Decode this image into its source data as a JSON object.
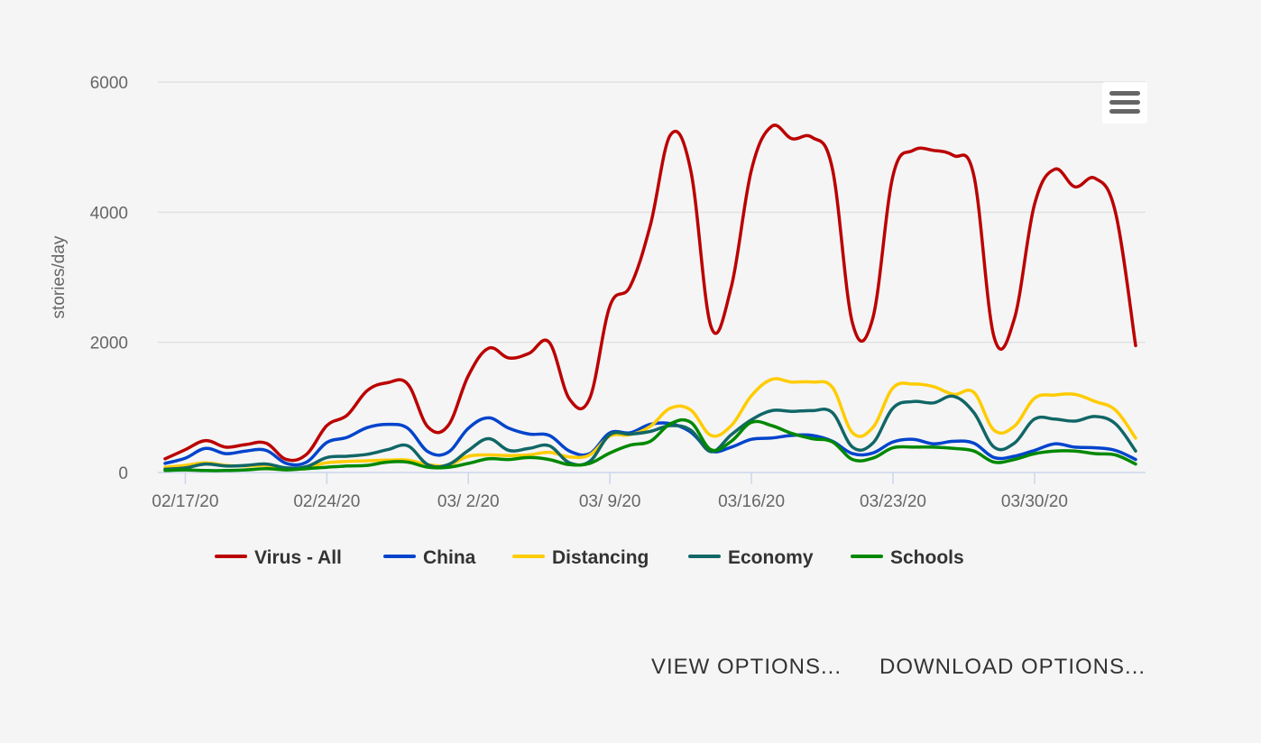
{
  "chart_data": {
    "type": "line",
    "title": "",
    "xlabel": "",
    "ylabel": "stories/day",
    "ylim": [
      0,
      6000
    ],
    "yticks": [
      0,
      2000,
      4000,
      6000
    ],
    "xlim": [
      0,
      48
    ],
    "xticks": [
      {
        "pos": 1,
        "label": "02/17/20"
      },
      {
        "pos": 8,
        "label": "02/24/20"
      },
      {
        "pos": 15,
        "label": "03/ 2/20"
      },
      {
        "pos": 22,
        "label": "03/ 9/20"
      },
      {
        "pos": 29,
        "label": "03/16/20"
      },
      {
        "pos": 36,
        "label": "03/23/20"
      },
      {
        "pos": 43,
        "label": "03/30/20"
      }
    ],
    "x": [
      0,
      1,
      2,
      3,
      4,
      5,
      6,
      7,
      8,
      9,
      10,
      11,
      12,
      13,
      14,
      15,
      16,
      17,
      18,
      19,
      20,
      21,
      22,
      23,
      24,
      25,
      26,
      27,
      28,
      29,
      30,
      31,
      32,
      33,
      34,
      35,
      36,
      37,
      38,
      39,
      40,
      41,
      42,
      43,
      44,
      45,
      46,
      47,
      48
    ],
    "legend_position": "bottom",
    "grid": true,
    "series": [
      {
        "name": "Virus - All",
        "color": "#bb0000",
        "values": [
          210,
          350,
          490,
          390,
          430,
          450,
          200,
          280,
          720,
          880,
          1260,
          1380,
          1360,
          700,
          720,
          1490,
          1910,
          1760,
          1830,
          2000,
          1130,
          1140,
          2560,
          2860,
          3800,
          5190,
          4640,
          2240,
          2850,
          4650,
          5320,
          5130,
          5150,
          4670,
          2290,
          2370,
          4560,
          4950,
          4950,
          4870,
          4560,
          2080,
          2360,
          4120,
          4660,
          4390,
          4520,
          4000,
          1950
        ]
      },
      {
        "name": "China",
        "color": "#0044cc",
        "values": [
          140,
          220,
          370,
          290,
          330,
          340,
          140,
          160,
          460,
          540,
          690,
          740,
          680,
          320,
          310,
          680,
          840,
          680,
          590,
          570,
          330,
          290,
          610,
          610,
          740,
          750,
          620,
          330,
          390,
          510,
          530,
          570,
          570,
          480,
          290,
          300,
          470,
          510,
          440,
          480,
          450,
          230,
          250,
          340,
          440,
          390,
          380,
          340,
          200
        ]
      },
      {
        "name": "Distancing",
        "color": "#ffcc00",
        "values": [
          80,
          110,
          150,
          110,
          100,
          110,
          60,
          80,
          150,
          170,
          180,
          190,
          190,
          120,
          110,
          250,
          270,
          260,
          270,
          310,
          240,
          270,
          560,
          580,
          710,
          990,
          960,
          570,
          720,
          1180,
          1430,
          1390,
          1390,
          1310,
          610,
          690,
          1300,
          1360,
          1320,
          1200,
          1230,
          650,
          710,
          1140,
          1190,
          1200,
          1090,
          960,
          530
        ]
      },
      {
        "name": "Economy",
        "color": "#116666",
        "values": [
          50,
          70,
          130,
          100,
          110,
          130,
          70,
          90,
          230,
          250,
          280,
          350,
          410,
          120,
          120,
          340,
          520,
          340,
          370,
          410,
          150,
          170,
          580,
          590,
          630,
          720,
          650,
          320,
          580,
          810,
          950,
          940,
          950,
          920,
          390,
          450,
          990,
          1090,
          1070,
          1170,
          920,
          390,
          450,
          820,
          820,
          790,
          860,
          750,
          330
        ]
      },
      {
        "name": "Schools",
        "color": "#008800",
        "values": [
          30,
          40,
          30,
          30,
          40,
          60,
          40,
          60,
          80,
          100,
          110,
          160,
          160,
          80,
          80,
          140,
          210,
          200,
          230,
          200,
          120,
          140,
          300,
          420,
          480,
          750,
          770,
          350,
          480,
          770,
          720,
          600,
          520,
          470,
          200,
          220,
          380,
          390,
          390,
          370,
          330,
          160,
          200,
          290,
          330,
          330,
          290,
          270,
          130
        ]
      }
    ]
  },
  "controls": {
    "view_options": "VIEW OPTIONS...",
    "download_options": "DOWNLOAD OPTIONS..."
  },
  "icons": {
    "menu": "hamburger-menu-icon"
  }
}
